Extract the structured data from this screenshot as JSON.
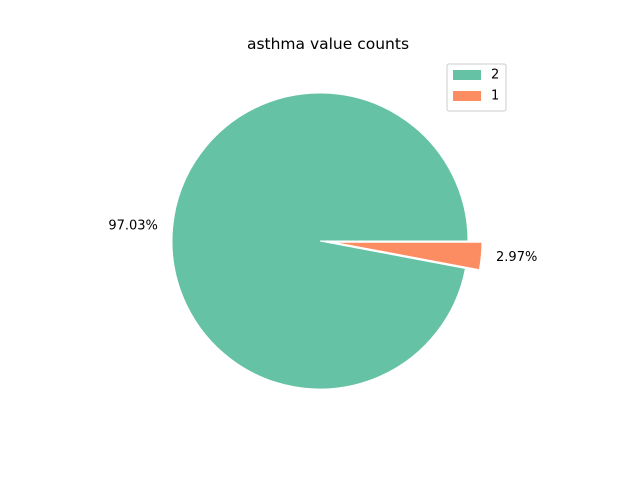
{
  "colors": {
    "slice_2": "#66c2a5",
    "slice_1": "#fc8d62",
    "background": "#ffffff",
    "edge": "#ffffff"
  },
  "chart_data": {
    "type": "pie",
    "title": "asthma value counts",
    "categories": [
      "2",
      "1"
    ],
    "values": [
      97.03,
      2.97
    ],
    "labels": [
      "97.03%",
      "2.97%"
    ],
    "exploded": [
      false,
      true
    ],
    "start_angle_deg": 0,
    "direction": "counterclockwise",
    "legend": {
      "placement": "top-right",
      "entries": [
        "2",
        "1"
      ]
    }
  }
}
